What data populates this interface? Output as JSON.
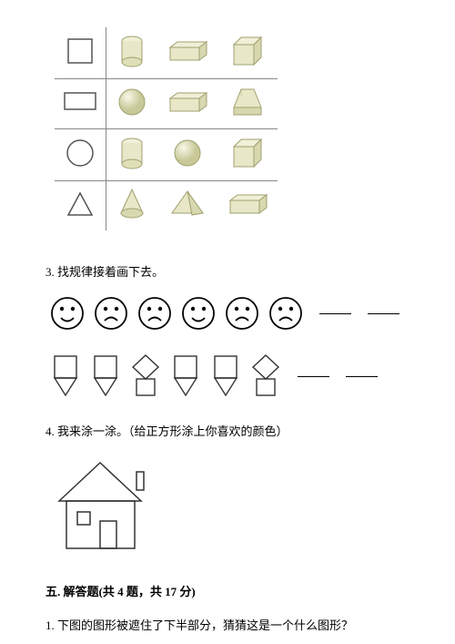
{
  "table": {
    "border_color": "#888888",
    "shape_fill": "#e8e8c8",
    "shape_stroke": "#a0a070",
    "flat_stroke": "#555555",
    "rows": [
      {
        "flat": "square",
        "solids": [
          "cylinder",
          "cuboid-lying",
          "cube"
        ]
      },
      {
        "flat": "rectangle",
        "solids": [
          "sphere",
          "cuboid-lying",
          "prism-tri"
        ]
      },
      {
        "flat": "circle",
        "solids": [
          "cylinder",
          "sphere",
          "cube"
        ]
      },
      {
        "flat": "triangle",
        "solids": [
          "cone",
          "pyramid",
          "cuboid-lying"
        ]
      }
    ]
  },
  "q3": {
    "text": "3. 找规律接着画下去。",
    "faces": [
      "happy",
      "sad",
      "sad",
      "happy",
      "sad",
      "sad"
    ],
    "face_stroke": "#000000",
    "shapes_seq": [
      "sq-tri",
      "sq-tri",
      "dia-sq",
      "sq-tri",
      "sq-tri",
      "dia-sq"
    ],
    "seq_stroke": "#333333"
  },
  "q4": {
    "text": "4. 我来涂一涂。（给正方形涂上你喜欢的颜色）",
    "house_stroke": "#333333"
  },
  "section5": {
    "title": "五. 解答题(共 4 题，共 17 分)",
    "q1": "1. 下图的图形被遮住了下半部分，猜猜这是一个什么图形？"
  }
}
